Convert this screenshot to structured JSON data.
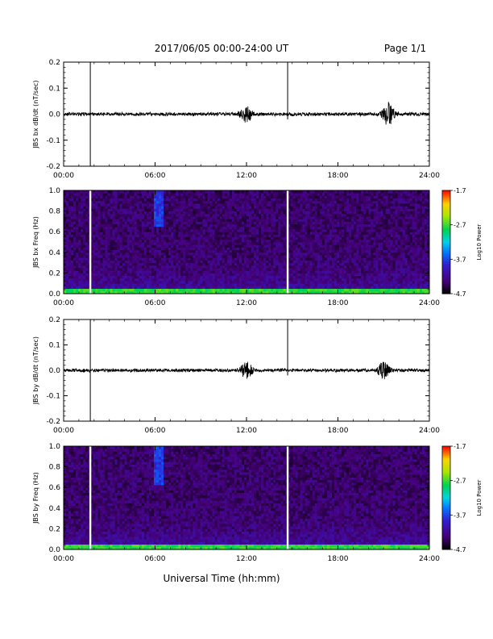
{
  "header": {
    "title": "2017/06/05  00:00-24:00 UT",
    "page": "Page 1/1"
  },
  "footer": {
    "xlabel": "Universal Time (hh:mm)"
  },
  "chart_data": [
    {
      "type": "line",
      "ylabel": "JBS bx dB/dt (nT/sec)",
      "xlim": [
        0,
        24
      ],
      "ylim": [
        -0.2,
        0.2
      ],
      "x_ticks": [
        "00:00",
        "06:00",
        "12:00",
        "18:00",
        "24:00"
      ],
      "y_ticks": [
        "0.2",
        "0.1",
        "0.0",
        "-0.1",
        "-0.2"
      ],
      "baseline": 0.0,
      "spikes": [
        {
          "x": 1.75,
          "y_min": -0.2,
          "y_max": 0.2
        },
        {
          "x": 14.7,
          "y_min": -0.02,
          "y_max": 0.2
        }
      ],
      "bursts": [
        {
          "x": 12.0,
          "amplitude": 0.03
        },
        {
          "x": 21.3,
          "amplitude": 0.04
        }
      ]
    },
    {
      "type": "heatmap",
      "ylabel": "JBS bx Freq (Hz)",
      "xlim": [
        0,
        24
      ],
      "ylim": [
        0.0,
        1.0
      ],
      "x_ticks": [
        "00:00",
        "06:00",
        "12:00",
        "18:00",
        "24:00"
      ],
      "y_ticks": [
        "1.0",
        "0.8",
        "0.6",
        "0.4",
        "0.2",
        "0.0"
      ],
      "colorbar": {
        "label": "Log10 Power",
        "range": [
          -4.7,
          -1.7
        ],
        "ticks": [
          "-1.7",
          "-2.7",
          "-3.7",
          "-4.7"
        ]
      },
      "data_gaps": [
        1.75,
        14.7
      ],
      "features": [
        {
          "x_range": [
            6.0,
            6.6
          ],
          "y_range": [
            0.65,
            1.0
          ],
          "level": -3.7
        },
        {
          "x_range": [
            0.0,
            24.0
          ],
          "y_range": [
            0.0,
            0.04
          ],
          "level": -2.7
        }
      ]
    },
    {
      "type": "line",
      "ylabel": "JBS by dB/dt (nT/sec)",
      "xlim": [
        0,
        24
      ],
      "ylim": [
        -0.2,
        0.2
      ],
      "x_ticks": [
        "00:00",
        "06:00",
        "12:00",
        "18:00",
        "24:00"
      ],
      "y_ticks": [
        "0.2",
        "0.1",
        "0.0",
        "-0.1",
        "-0.2"
      ],
      "baseline": 0.0,
      "spikes": [
        {
          "x": 1.75,
          "y_min": -0.2,
          "y_max": 0.2
        },
        {
          "x": 14.7,
          "y_min": -0.02,
          "y_max": 0.2
        }
      ],
      "bursts": [
        {
          "x": 12.0,
          "amplitude": 0.03
        },
        {
          "x": 21.0,
          "amplitude": 0.03
        }
      ]
    },
    {
      "type": "heatmap",
      "ylabel": "JBS by Freq (Hz)",
      "xlim": [
        0,
        24
      ],
      "ylim": [
        0.0,
        1.0
      ],
      "x_ticks": [
        "00:00",
        "06:00",
        "12:00",
        "18:00",
        "24:00"
      ],
      "y_ticks": [
        "1.0",
        "0.8",
        "0.6",
        "0.4",
        "0.2",
        "0.0"
      ],
      "colorbar": {
        "label": "Log10 Power",
        "range": [
          -4.7,
          -1.7
        ],
        "ticks": [
          "-1.7",
          "-2.7",
          "-3.7",
          "-4.7"
        ]
      },
      "data_gaps": [
        1.75,
        14.7
      ],
      "features": [
        {
          "x_range": [
            6.0,
            6.6
          ],
          "y_range": [
            0.62,
            1.0
          ],
          "level": -3.7
        },
        {
          "x_range": [
            0.0,
            24.0
          ],
          "y_range": [
            0.0,
            0.05
          ],
          "level": -2.7
        }
      ]
    }
  ]
}
